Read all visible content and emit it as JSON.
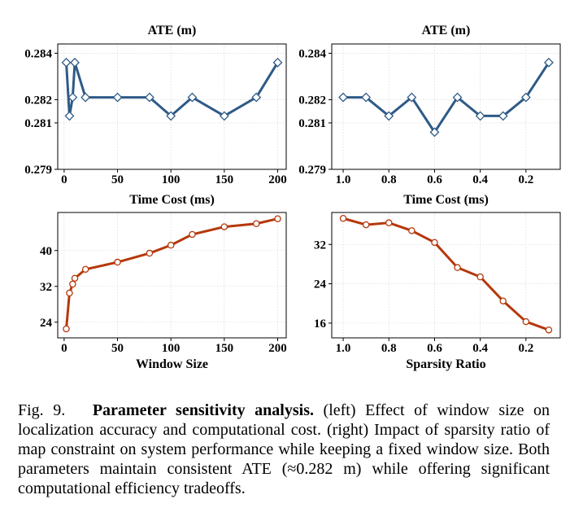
{
  "chart_data": [
    {
      "type": "line",
      "title": "ATE (m)",
      "xlabel": "",
      "ylabel": "",
      "x": [
        2,
        5,
        8,
        10,
        20,
        50,
        80,
        100,
        120,
        150,
        180,
        200
      ],
      "series": [
        {
          "values": [
            0.2836,
            0.2813,
            0.2821,
            0.2836,
            0.2821,
            0.2821,
            0.2821,
            0.2813,
            0.2821,
            0.2813,
            0.2821,
            0.2836
          ]
        }
      ],
      "xlim": [
        -6,
        208
      ],
      "ylim": [
        0.279,
        0.2844
      ],
      "xticks": [
        "0",
        "50",
        "100",
        "150",
        "200"
      ],
      "yticks": [
        "0.279",
        "0.281",
        "0.282",
        "0.284"
      ],
      "color": "#2e5a87",
      "marker": "diamond",
      "grid": true
    },
    {
      "type": "line",
      "title": "ATE (m)",
      "xlabel": "",
      "ylabel": "",
      "x": [
        1.0,
        0.9,
        0.8,
        0.7,
        0.6,
        0.5,
        0.4,
        0.3,
        0.2,
        0.1
      ],
      "series": [
        {
          "values": [
            0.2821,
            0.2821,
            0.2813,
            0.2821,
            0.2806,
            0.2821,
            0.2813,
            0.2813,
            0.2821,
            0.2836
          ]
        }
      ],
      "xlim": [
        1.05,
        0.05
      ],
      "ylim": [
        0.279,
        0.2844
      ],
      "xticks": [
        "1.0",
        "0.8",
        "0.6",
        "0.4",
        "0.2"
      ],
      "yticks": [
        "0.279",
        "0.281",
        "0.282",
        "0.284"
      ],
      "color": "#2e5a87",
      "marker": "diamond",
      "grid": true
    },
    {
      "type": "line",
      "title": "Time Cost (ms)",
      "xlabel": "Window Size",
      "ylabel": "",
      "x": [
        2,
        5,
        8,
        10,
        20,
        50,
        80,
        100,
        120,
        150,
        180,
        200
      ],
      "series": [
        {
          "values": [
            22.5,
            30.5,
            32.5,
            33.8,
            35.8,
            37.4,
            39.4,
            41.2,
            43.6,
            45.3,
            46.0,
            47.1
          ]
        }
      ],
      "xlim": [
        -6,
        208
      ],
      "ylim": [
        20.5,
        48.5
      ],
      "xticks": [
        "0",
        "50",
        "100",
        "150",
        "200"
      ],
      "yticks": [
        "24",
        "32",
        "40"
      ],
      "color": "#b5380b",
      "marker": "circle",
      "grid": true
    },
    {
      "type": "line",
      "title": "Time Cost (ms)",
      "xlabel": "Sparsity Ratio",
      "ylabel": "",
      "x": [
        1.0,
        0.9,
        0.8,
        0.7,
        0.6,
        0.5,
        0.4,
        0.3,
        0.2,
        0.1
      ],
      "series": [
        {
          "values": [
            37.3,
            36.0,
            36.4,
            34.8,
            32.4,
            27.3,
            25.4,
            20.5,
            16.3,
            14.6
          ]
        }
      ],
      "xlim": [
        1.05,
        0.05
      ],
      "ylim": [
        13.0,
        38.5
      ],
      "xticks": [
        "1.0",
        "0.8",
        "0.6",
        "0.4",
        "0.2"
      ],
      "yticks": [
        "16",
        "24",
        "32"
      ],
      "color": "#b5380b",
      "marker": "circle",
      "grid": true
    }
  ],
  "caption": {
    "number": "Fig. 9.",
    "bold": "Parameter sensitivity analysis.",
    "text": "(left) Effect of window size on localization accuracy and computational cost. (right) Impact of sparsity ratio of map constraint on system performance while keeping a fixed window size. Both parameters maintain consistent ATE (≈0.282 m) while offering significant computational efficiency tradeoffs."
  }
}
